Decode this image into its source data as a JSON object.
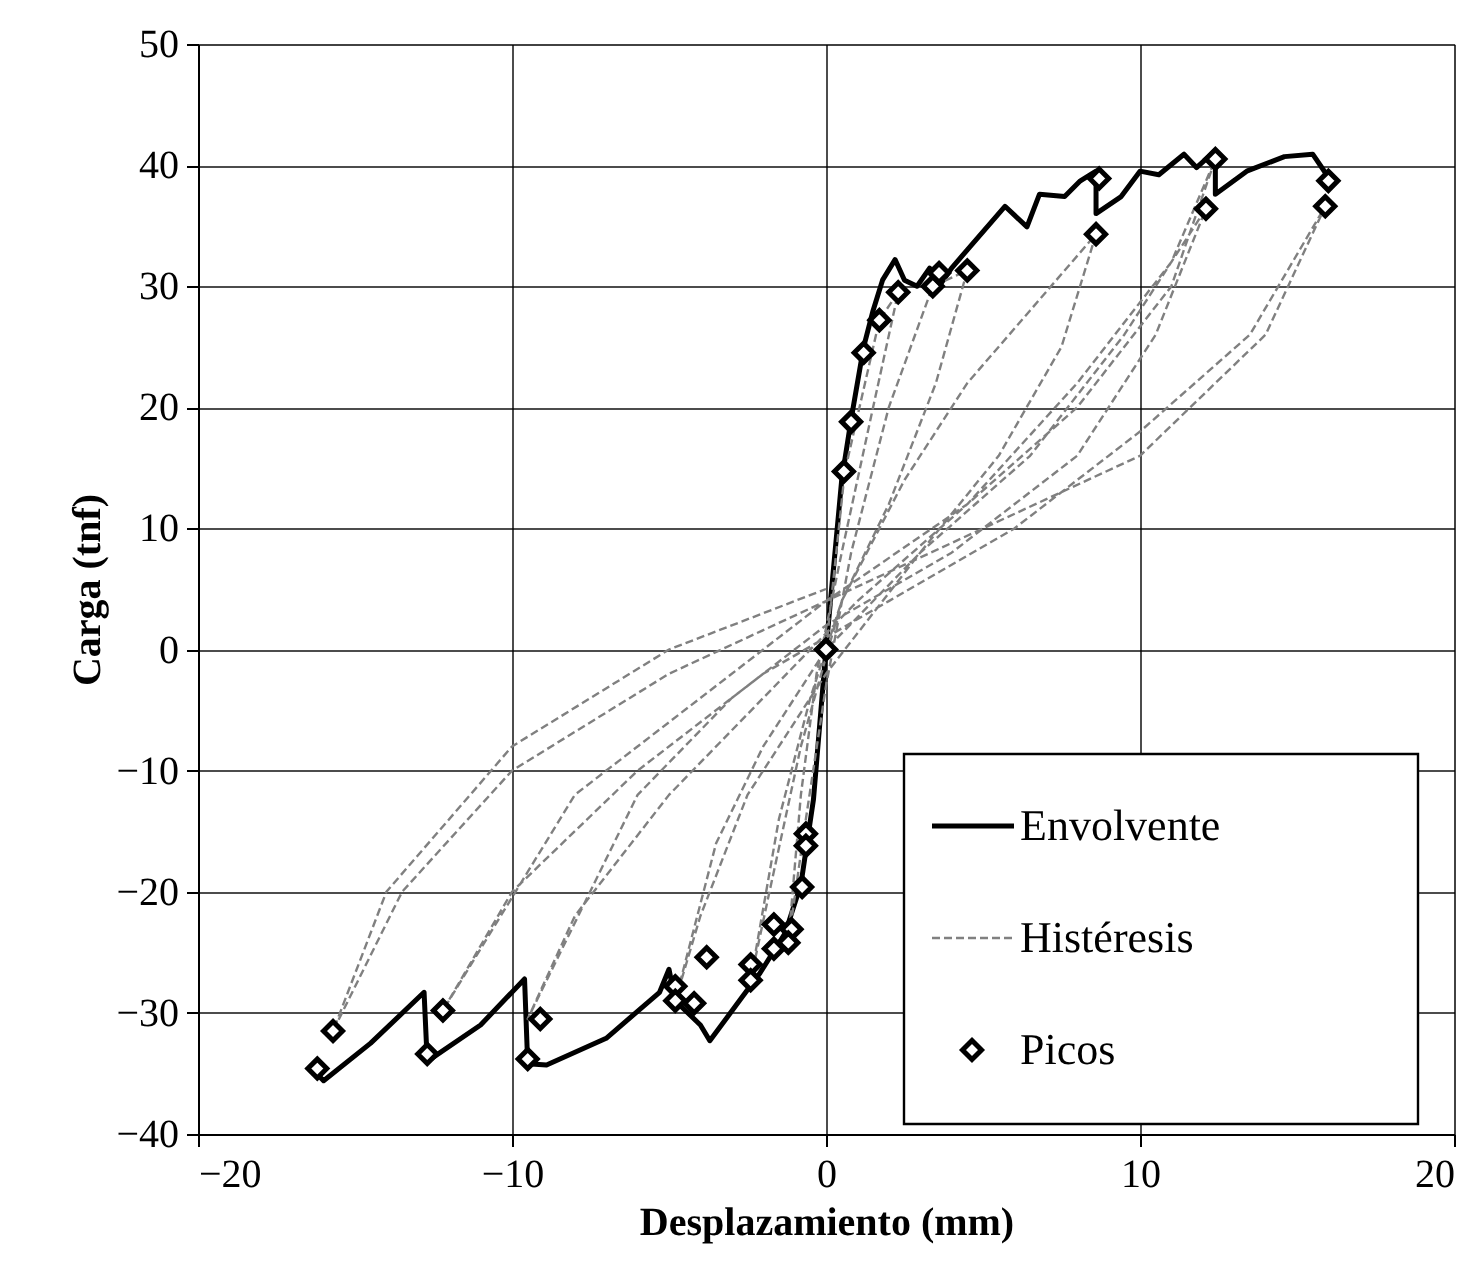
{
  "chart_data": {
    "type": "line",
    "xlabel": "Desplazamiento (mm)",
    "ylabel": "Carga (tnf)",
    "xlim": [
      -20,
      20
    ],
    "xticks": [
      -20,
      -10,
      0,
      10,
      20
    ],
    "ylim": [
      -40,
      50
    ],
    "yticks": [
      -40,
      -30,
      -20,
      -10,
      0,
      10,
      20,
      30,
      40,
      50
    ],
    "grid": true,
    "legend": "bottom right",
    "series": [
      {
        "name": "Envolvente",
        "color": "#000000",
        "line_style": "solid",
        "x": [
          -16.3,
          -16.0,
          -14.5,
          -12.8,
          -12.7,
          -11.0,
          -9.6,
          -9.5,
          -8.9,
          -7.0,
          -5.3,
          -5.0,
          -4.8,
          -4.0,
          -3.7,
          -2.7,
          -2.1,
          -1.3,
          -0.8,
          -0.4,
          0,
          0.5,
          0.8,
          1.2,
          1.5,
          1.8,
          2.2,
          2.5,
          2.9,
          3.3,
          3.6,
          4.0,
          4.5,
          5.7,
          6.4,
          6.8,
          7.6,
          8.1,
          8.6,
          8.6,
          9.4,
          10.0,
          10.6,
          11.4,
          11.8,
          12.4,
          12.4,
          13.4,
          14.6,
          15.5,
          16.0
        ],
        "values": [
          -34.8,
          -35.6,
          -32.5,
          -28.3,
          -34.0,
          -31.0,
          -27.2,
          -34.2,
          -34.3,
          -32.1,
          -28.3,
          -26.4,
          -29.0,
          -31.0,
          -32.3,
          -28.8,
          -26.7,
          -23.4,
          -19.4,
          -12.4,
          0,
          14.0,
          19.0,
          25.0,
          28.0,
          30.5,
          32.2,
          30.5,
          30.0,
          31.5,
          30.0,
          31.5,
          33.0,
          36.6,
          34.9,
          37.6,
          37.4,
          38.7,
          39.5,
          36.0,
          37.4,
          39.5,
          39.2,
          40.9,
          39.8,
          41.2,
          37.6,
          39.5,
          40.7,
          40.9,
          39.0
        ]
      },
      {
        "name": "Histéresis",
        "color": "#808080",
        "line_style": "dashed",
        "x": [
          0,
          0.6,
          1.7,
          2.3,
          1.5,
          0.5,
          -0.3,
          -0.8,
          -1.2,
          -0.7,
          0,
          0.8,
          2.0,
          3.4,
          4.5,
          3.5,
          2.0,
          0.5,
          -0.5,
          -1.5,
          -2.4,
          -1.8,
          -0.8,
          0.5,
          2.5,
          4.5,
          6.5,
          8.6,
          7.5,
          5.5,
          3.0,
          0,
          -2.0,
          -3.5,
          -4.8,
          -4.0,
          -2.5,
          0,
          3.0,
          6.5,
          9.5,
          12.1,
          10.5,
          8.0,
          4.0,
          0,
          -3.0,
          -6.0,
          -9.5,
          -8.0,
          -5.0,
          -2.0,
          1.0,
          4.5,
          8.0,
          11.0,
          12.4,
          11.0,
          8.0,
          4.5,
          0,
          -4.0,
          -8.0,
          -12.2,
          -10.0,
          -6.0,
          -2.0,
          2.0,
          6.0,
          10.0,
          13.5,
          15.9,
          14.0,
          10.0,
          5.0,
          0,
          -5.0,
          -10.0,
          -13.5,
          -15.7,
          -14.0,
          -10.0,
          -5.0,
          0
        ],
        "values": [
          0,
          14.7,
          27.2,
          29.5,
          20.0,
          8.0,
          -2.0,
          -12.0,
          -24.2,
          -15.0,
          -3.0,
          8.0,
          20.0,
          30.0,
          31.3,
          22.0,
          12.0,
          4.0,
          -4.0,
          -14.0,
          -27.3,
          -20.0,
          -8.0,
          4.0,
          14.0,
          22.0,
          28.0,
          34.3,
          25.0,
          16.0,
          8.0,
          0,
          -8.0,
          -16.0,
          -29.0,
          -22.0,
          -12.0,
          -2.0,
          8.0,
          16.0,
          26.0,
          36.4,
          26.0,
          16.0,
          8.0,
          2.0,
          -4.0,
          -12.0,
          -30.5,
          -22.0,
          -12.0,
          -4.0,
          4.0,
          12.0,
          22.0,
          32.0,
          40.5,
          30.0,
          20.0,
          12.0,
          4.0,
          -4.0,
          -12.0,
          -29.8,
          -20.0,
          -10.0,
          -2.0,
          4.0,
          10.0,
          18.0,
          26.0,
          36.6,
          26.0,
          16.0,
          10.0,
          4.0,
          -2.0,
          -10.0,
          -20.0,
          -31.5,
          -20.0,
          -8.0,
          0.0,
          5.0
        ]
      },
      {
        "name": "Picos",
        "type": "scatter",
        "color": "#000000",
        "marker": "diamond",
        "x": [
          0,
          0.57,
          0.8,
          1.2,
          1.7,
          2.3,
          3.4,
          3.6,
          4.5,
          8.6,
          8.7,
          12.1,
          12.4,
          15.9,
          16.0,
          -0.64,
          -0.64,
          -0.76,
          -1.1,
          -1.2,
          -1.66,
          -1.66,
          -2.4,
          -2.4,
          -3.8,
          -4.2,
          -4.8,
          -4.8,
          -9.1,
          -9.5,
          -12.2,
          -12.7,
          -15.7,
          -16.2
        ],
        "values": [
          0,
          14.7,
          18.8,
          24.5,
          27.2,
          29.5,
          30.0,
          31.1,
          31.3,
          34.3,
          38.9,
          36.4,
          40.5,
          36.6,
          38.7,
          -15.2,
          -16.2,
          -19.6,
          -23.1,
          -24.2,
          -22.7,
          -24.7,
          -26.0,
          -27.3,
          -25.4,
          -29.2,
          -27.8,
          -29.0,
          -30.5,
          -33.8,
          -29.8,
          -33.4,
          -31.5,
          -34.6
        ]
      }
    ]
  }
}
